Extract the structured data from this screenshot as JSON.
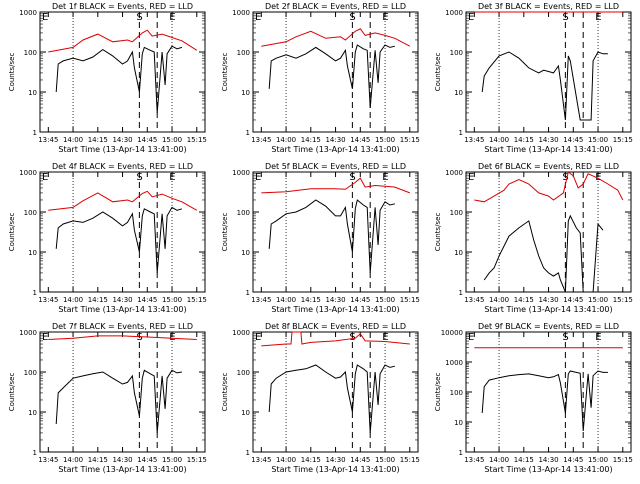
{
  "chart_data": [
    {
      "type": "line",
      "scale": "log",
      "title": "Det 1f BLACK = Events, RED = LLD",
      "ylabel": "Counts/sec",
      "xlabel": "Start Time (13-Apr-14 13:41:00)",
      "ylim": [
        1,
        1000
      ],
      "xticks": [
        "13:45",
        "14:00",
        "14:15",
        "14:30",
        "14:45",
        "15:00",
        "15:15"
      ],
      "yticks": [
        "1",
        "10",
        "100",
        "1000"
      ],
      "markers": [
        "E",
        "S",
        "E"
      ],
      "series": [
        {
          "color": "#dd0000",
          "x": [
            13.75,
            14.0,
            14.1,
            14.25,
            14.4,
            14.55,
            14.6,
            14.7,
            14.75,
            14.8,
            14.9,
            15.0,
            15.1,
            15.25
          ],
          "y": [
            100,
            130,
            200,
            280,
            180,
            200,
            180,
            300,
            350,
            250,
            280,
            230,
            190,
            110
          ]
        },
        {
          "color": "#000000",
          "x": [
            13.83,
            13.85,
            13.9,
            14.0,
            14.1,
            14.2,
            14.3,
            14.4,
            14.5,
            14.55,
            14.6,
            14.62,
            14.67,
            14.7,
            14.72,
            14.78,
            14.82,
            14.85,
            14.9,
            14.93,
            14.95,
            15.0,
            15.05,
            15.1
          ],
          "y": [
            10,
            50,
            60,
            70,
            60,
            75,
            115,
            80,
            50,
            60,
            100,
            40,
            10,
            90,
            130,
            110,
            100,
            3,
            100,
            15,
            90,
            140,
            120,
            130
          ]
        }
      ]
    },
    {
      "type": "line",
      "scale": "log",
      "title": "Det 2f BLACK = Events, RED = LLD",
      "ylabel": "Counts/sec",
      "xlabel": "Start Time (13-Apr-14 13:41:00)",
      "ylim": [
        1,
        1000
      ],
      "xticks": [
        "13:45",
        "14:00",
        "14:15",
        "14:30",
        "14:45",
        "15:00",
        "15:15"
      ],
      "yticks": [
        "1",
        "10",
        "100",
        "1000"
      ],
      "markers": [
        "E",
        "S",
        "E"
      ],
      "series": [
        {
          "color": "#dd0000",
          "x": [
            13.75,
            14.0,
            14.1,
            14.25,
            14.4,
            14.55,
            14.6,
            14.7,
            14.75,
            14.8,
            14.9,
            15.0,
            15.1,
            15.25
          ],
          "y": [
            140,
            180,
            240,
            330,
            220,
            240,
            200,
            330,
            380,
            260,
            300,
            260,
            220,
            140
          ]
        },
        {
          "color": "#000000",
          "x": [
            13.83,
            13.85,
            13.9,
            14.0,
            14.1,
            14.2,
            14.3,
            14.4,
            14.5,
            14.55,
            14.6,
            14.62,
            14.67,
            14.7,
            14.72,
            14.78,
            14.82,
            14.85,
            14.9,
            14.93,
            14.95,
            15.0,
            15.05,
            15.1
          ],
          "y": [
            12,
            60,
            70,
            85,
            70,
            90,
            130,
            90,
            60,
            70,
            110,
            45,
            12,
            100,
            150,
            120,
            110,
            4,
            110,
            17,
            100,
            150,
            130,
            140
          ]
        }
      ]
    },
    {
      "type": "line",
      "scale": "log",
      "title": "Det 3f BLACK = Events, RED = LLD",
      "ylabel": "Counts/sec",
      "xlabel": "Start Time (13-Apr-14 13:41:00)",
      "ylim": [
        1,
        1000
      ],
      "xticks": [
        "13:45",
        "14:00",
        "14:15",
        "14:30",
        "14:45",
        "15:00",
        "15:15"
      ],
      "yticks": [
        "1",
        "10",
        "100",
        "1000"
      ],
      "markers": [
        "E",
        "S",
        "E"
      ],
      "series": [
        {
          "color": "#dd0000",
          "x": [
            13.75,
            14.0,
            14.25,
            14.5,
            14.75,
            15.0,
            15.25
          ],
          "y": [
            1000,
            1000,
            1000,
            1000,
            1000,
            1000,
            1000
          ]
        },
        {
          "color": "#000000",
          "x": [
            13.83,
            13.85,
            13.9,
            14.0,
            14.1,
            14.2,
            14.3,
            14.4,
            14.45,
            14.55,
            14.6,
            14.62,
            14.67,
            14.7,
            14.72,
            14.82,
            14.85,
            14.9,
            14.93,
            14.95,
            15.0,
            15.05,
            15.1
          ],
          "y": [
            10,
            25,
            40,
            80,
            100,
            70,
            40,
            30,
            35,
            30,
            45,
            20,
            2,
            80,
            60,
            2,
            2,
            2,
            2,
            60,
            100,
            90,
            90
          ]
        }
      ]
    },
    {
      "type": "line",
      "scale": "log",
      "title": "Det 4f BLACK = Events, RED = LLD",
      "ylabel": "Counts/sec",
      "xlabel": "Start Time (13-Apr-14 13:41:00)",
      "ylim": [
        1,
        1000
      ],
      "xticks": [
        "13:45",
        "14:00",
        "14:15",
        "14:30",
        "14:45",
        "15:00",
        "15:15"
      ],
      "yticks": [
        "1",
        "10",
        "100",
        "1000"
      ],
      "markers": [
        "E",
        "S",
        "E"
      ],
      "series": [
        {
          "color": "#dd0000",
          "x": [
            13.75,
            14.0,
            14.1,
            14.25,
            14.4,
            14.55,
            14.6,
            14.7,
            14.75,
            14.8,
            14.9,
            15.0,
            15.1,
            15.25
          ],
          "y": [
            110,
            130,
            190,
            300,
            180,
            200,
            180,
            290,
            330,
            240,
            280,
            220,
            180,
            110
          ]
        },
        {
          "color": "#000000",
          "x": [
            13.83,
            13.85,
            13.9,
            14.0,
            14.1,
            14.2,
            14.3,
            14.4,
            14.5,
            14.55,
            14.6,
            14.62,
            14.67,
            14.7,
            14.72,
            14.78,
            14.82,
            14.85,
            14.9,
            14.93,
            14.95,
            15.0,
            15.05,
            15.1
          ],
          "y": [
            12,
            40,
            50,
            60,
            55,
            70,
            100,
            70,
            45,
            55,
            90,
            35,
            10,
            80,
            120,
            100,
            90,
            3,
            90,
            12,
            80,
            130,
            110,
            120
          ]
        }
      ]
    },
    {
      "type": "line",
      "scale": "log",
      "title": "Det 5f BLACK = Events, RED = LLD",
      "ylabel": "Counts/sec",
      "xlabel": "Start Time (13-Apr-14 13:41:00)",
      "ylim": [
        1,
        1000
      ],
      "xticks": [
        "13:45",
        "14:00",
        "14:15",
        "14:30",
        "14:45",
        "15:00",
        "15:15"
      ],
      "yticks": [
        "1",
        "10",
        "100",
        "1000"
      ],
      "markers": [
        "E",
        "S",
        "E"
      ],
      "series": [
        {
          "color": "#dd0000",
          "x": [
            13.75,
            14.0,
            14.25,
            14.5,
            14.6,
            14.7,
            14.75,
            14.8,
            14.9,
            15.0,
            15.1,
            15.25
          ],
          "y": [
            300,
            320,
            380,
            380,
            370,
            550,
            700,
            420,
            460,
            440,
            420,
            300
          ]
        },
        {
          "color": "#000000",
          "x": [
            13.83,
            13.85,
            13.9,
            14.0,
            14.1,
            14.2,
            14.3,
            14.4,
            14.5,
            14.55,
            14.6,
            14.62,
            14.67,
            14.7,
            14.72,
            14.78,
            14.82,
            14.85,
            14.9,
            14.93,
            14.95,
            15.0,
            15.05,
            15.1
          ],
          "y": [
            12,
            50,
            60,
            90,
            100,
            130,
            200,
            140,
            80,
            80,
            130,
            50,
            10,
            120,
            200,
            150,
            130,
            3,
            130,
            15,
            110,
            180,
            150,
            160
          ]
        }
      ]
    },
    {
      "type": "line",
      "scale": "log",
      "title": "Det 6f BLACK = Events, RED = LLD",
      "ylabel": "Counts/sec",
      "xlabel": "Start Time (13-Apr-14 13:41:00)",
      "ylim": [
        1,
        1000
      ],
      "xticks": [
        "13:45",
        "14:00",
        "14:15",
        "14:30",
        "14:45",
        "15:00",
        "15:15"
      ],
      "yticks": [
        "1",
        "10",
        "100",
        "1000"
      ],
      "markers": [
        "E",
        "S",
        "E"
      ],
      "series": [
        {
          "color": "#dd0000",
          "x": [
            13.75,
            13.85,
            13.95,
            14.05,
            14.1,
            14.2,
            14.3,
            14.4,
            14.5,
            14.55,
            14.65,
            14.7,
            14.75,
            14.8,
            14.85,
            14.9,
            15.0,
            15.1,
            15.2,
            15.25
          ],
          "y": [
            200,
            180,
            250,
            350,
            500,
            650,
            500,
            300,
            250,
            200,
            300,
            1000,
            800,
            400,
            500,
            900,
            700,
            500,
            350,
            200
          ]
        },
        {
          "color": "#000000",
          "x": [
            13.85,
            13.9,
            13.95,
            14.0,
            14.1,
            14.2,
            14.3,
            14.35,
            14.4,
            14.45,
            14.5,
            14.55,
            14.6,
            14.62,
            14.67,
            14.7,
            14.72,
            14.78,
            14.82,
            14.85,
            14.9,
            14.95,
            15.0,
            15.05
          ],
          "y": [
            2,
            3,
            4,
            8,
            25,
            40,
            60,
            20,
            8,
            4,
            3,
            2.5,
            3,
            2,
            1,
            60,
            80,
            40,
            30,
            1,
            1,
            1,
            50,
            35
          ]
        }
      ]
    },
    {
      "type": "line",
      "scale": "log",
      "title": "Det 7f BLACK = Events, RED = LLD",
      "ylabel": "Counts/sec",
      "xlabel": "Start Time (13-Apr-14 13:41:00)",
      "ylim": [
        1,
        1000
      ],
      "xticks": [
        "13:45",
        "14:00",
        "14:15",
        "14:30",
        "14:45",
        "15:00",
        "15:15"
      ],
      "yticks": [
        "1",
        "10",
        "100",
        "1000"
      ],
      "markers": [
        "E",
        "S",
        "E"
      ],
      "series": [
        {
          "color": "#dd0000",
          "x": [
            13.75,
            14.0,
            14.25,
            14.5,
            14.75,
            15.0,
            15.25
          ],
          "y": [
            650,
            700,
            800,
            800,
            750,
            700,
            650
          ]
        },
        {
          "color": "#000000",
          "x": [
            13.83,
            13.85,
            13.9,
            14.0,
            14.1,
            14.2,
            14.3,
            14.4,
            14.5,
            14.55,
            14.6,
            14.62,
            14.67,
            14.7,
            14.72,
            14.78,
            14.82,
            14.85,
            14.9,
            14.93,
            14.95,
            15.0,
            15.05,
            15.1
          ],
          "y": [
            5,
            30,
            40,
            70,
            80,
            90,
            100,
            70,
            50,
            55,
            80,
            30,
            8,
            70,
            110,
            90,
            80,
            3,
            80,
            12,
            70,
            110,
            95,
            100
          ]
        }
      ]
    },
    {
      "type": "line",
      "scale": "log",
      "title": "Det 8f BLACK = Events, RED = LLD",
      "ylabel": "Counts/sec",
      "xlabel": "Start Time (13-Apr-14 13:41:00)",
      "ylim": [
        1,
        1000
      ],
      "xticks": [
        "13:45",
        "14:00",
        "14:15",
        "14:30",
        "14:45",
        "15:00",
        "15:15"
      ],
      "yticks": [
        "1",
        "10",
        "100",
        "1000"
      ],
      "markers": [
        "E",
        "S",
        "E"
      ],
      "series": [
        {
          "color": "#dd0000",
          "x": [
            13.75,
            14.0,
            14.05,
            14.06,
            14.15,
            14.16,
            14.25,
            14.5,
            14.7,
            14.75,
            14.8,
            15.0,
            15.25
          ],
          "y": [
            450,
            500,
            500,
            1000,
            1000,
            500,
            550,
            600,
            700,
            900,
            600,
            580,
            500
          ]
        },
        {
          "color": "#000000",
          "x": [
            13.83,
            13.85,
            13.9,
            14.0,
            14.1,
            14.2,
            14.3,
            14.4,
            14.5,
            14.55,
            14.6,
            14.62,
            14.67,
            14.7,
            14.72,
            14.78,
            14.82,
            14.85,
            14.9,
            14.93,
            14.95,
            15.0,
            15.05,
            15.1
          ],
          "y": [
            10,
            50,
            70,
            100,
            110,
            120,
            150,
            100,
            70,
            75,
            100,
            40,
            10,
            90,
            150,
            120,
            100,
            3,
            100,
            15,
            90,
            150,
            130,
            140
          ]
        }
      ]
    },
    {
      "type": "line",
      "scale": "log",
      "title": "Det 9f BLACK = Events, RED = LLD",
      "ylabel": "Counts/sec",
      "xlabel": "Start Time (13-Apr-14 13:41:00)",
      "ylim": [
        1,
        10000
      ],
      "xticks": [
        "13:45",
        "14:00",
        "14:15",
        "14:30",
        "14:45",
        "15:00",
        "15:15"
      ],
      "yticks": [
        "1",
        "10",
        "100",
        "1000",
        "10000"
      ],
      "markers": [
        "E",
        "S",
        "E"
      ],
      "series": [
        {
          "color": "#dd0000",
          "x": [
            13.75,
            14.0,
            14.25,
            14.5,
            14.75,
            15.0,
            15.25
          ],
          "y": [
            3000,
            3000,
            3000,
            3000,
            3000,
            3000,
            3000
          ]
        },
        {
          "color": "#000000",
          "x": [
            13.83,
            13.85,
            13.9,
            14.0,
            14.1,
            14.2,
            14.3,
            14.4,
            14.5,
            14.55,
            14.6,
            14.62,
            14.67,
            14.7,
            14.72,
            14.78,
            14.82,
            14.85,
            14.9,
            14.93,
            14.95,
            15.0,
            15.05,
            15.1
          ],
          "y": [
            20,
            150,
            250,
            300,
            350,
            380,
            400,
            350,
            300,
            320,
            380,
            200,
            20,
            400,
            500,
            450,
            420,
            5,
            400,
            30,
            350,
            500,
            450,
            450
          ]
        }
      ]
    }
  ]
}
